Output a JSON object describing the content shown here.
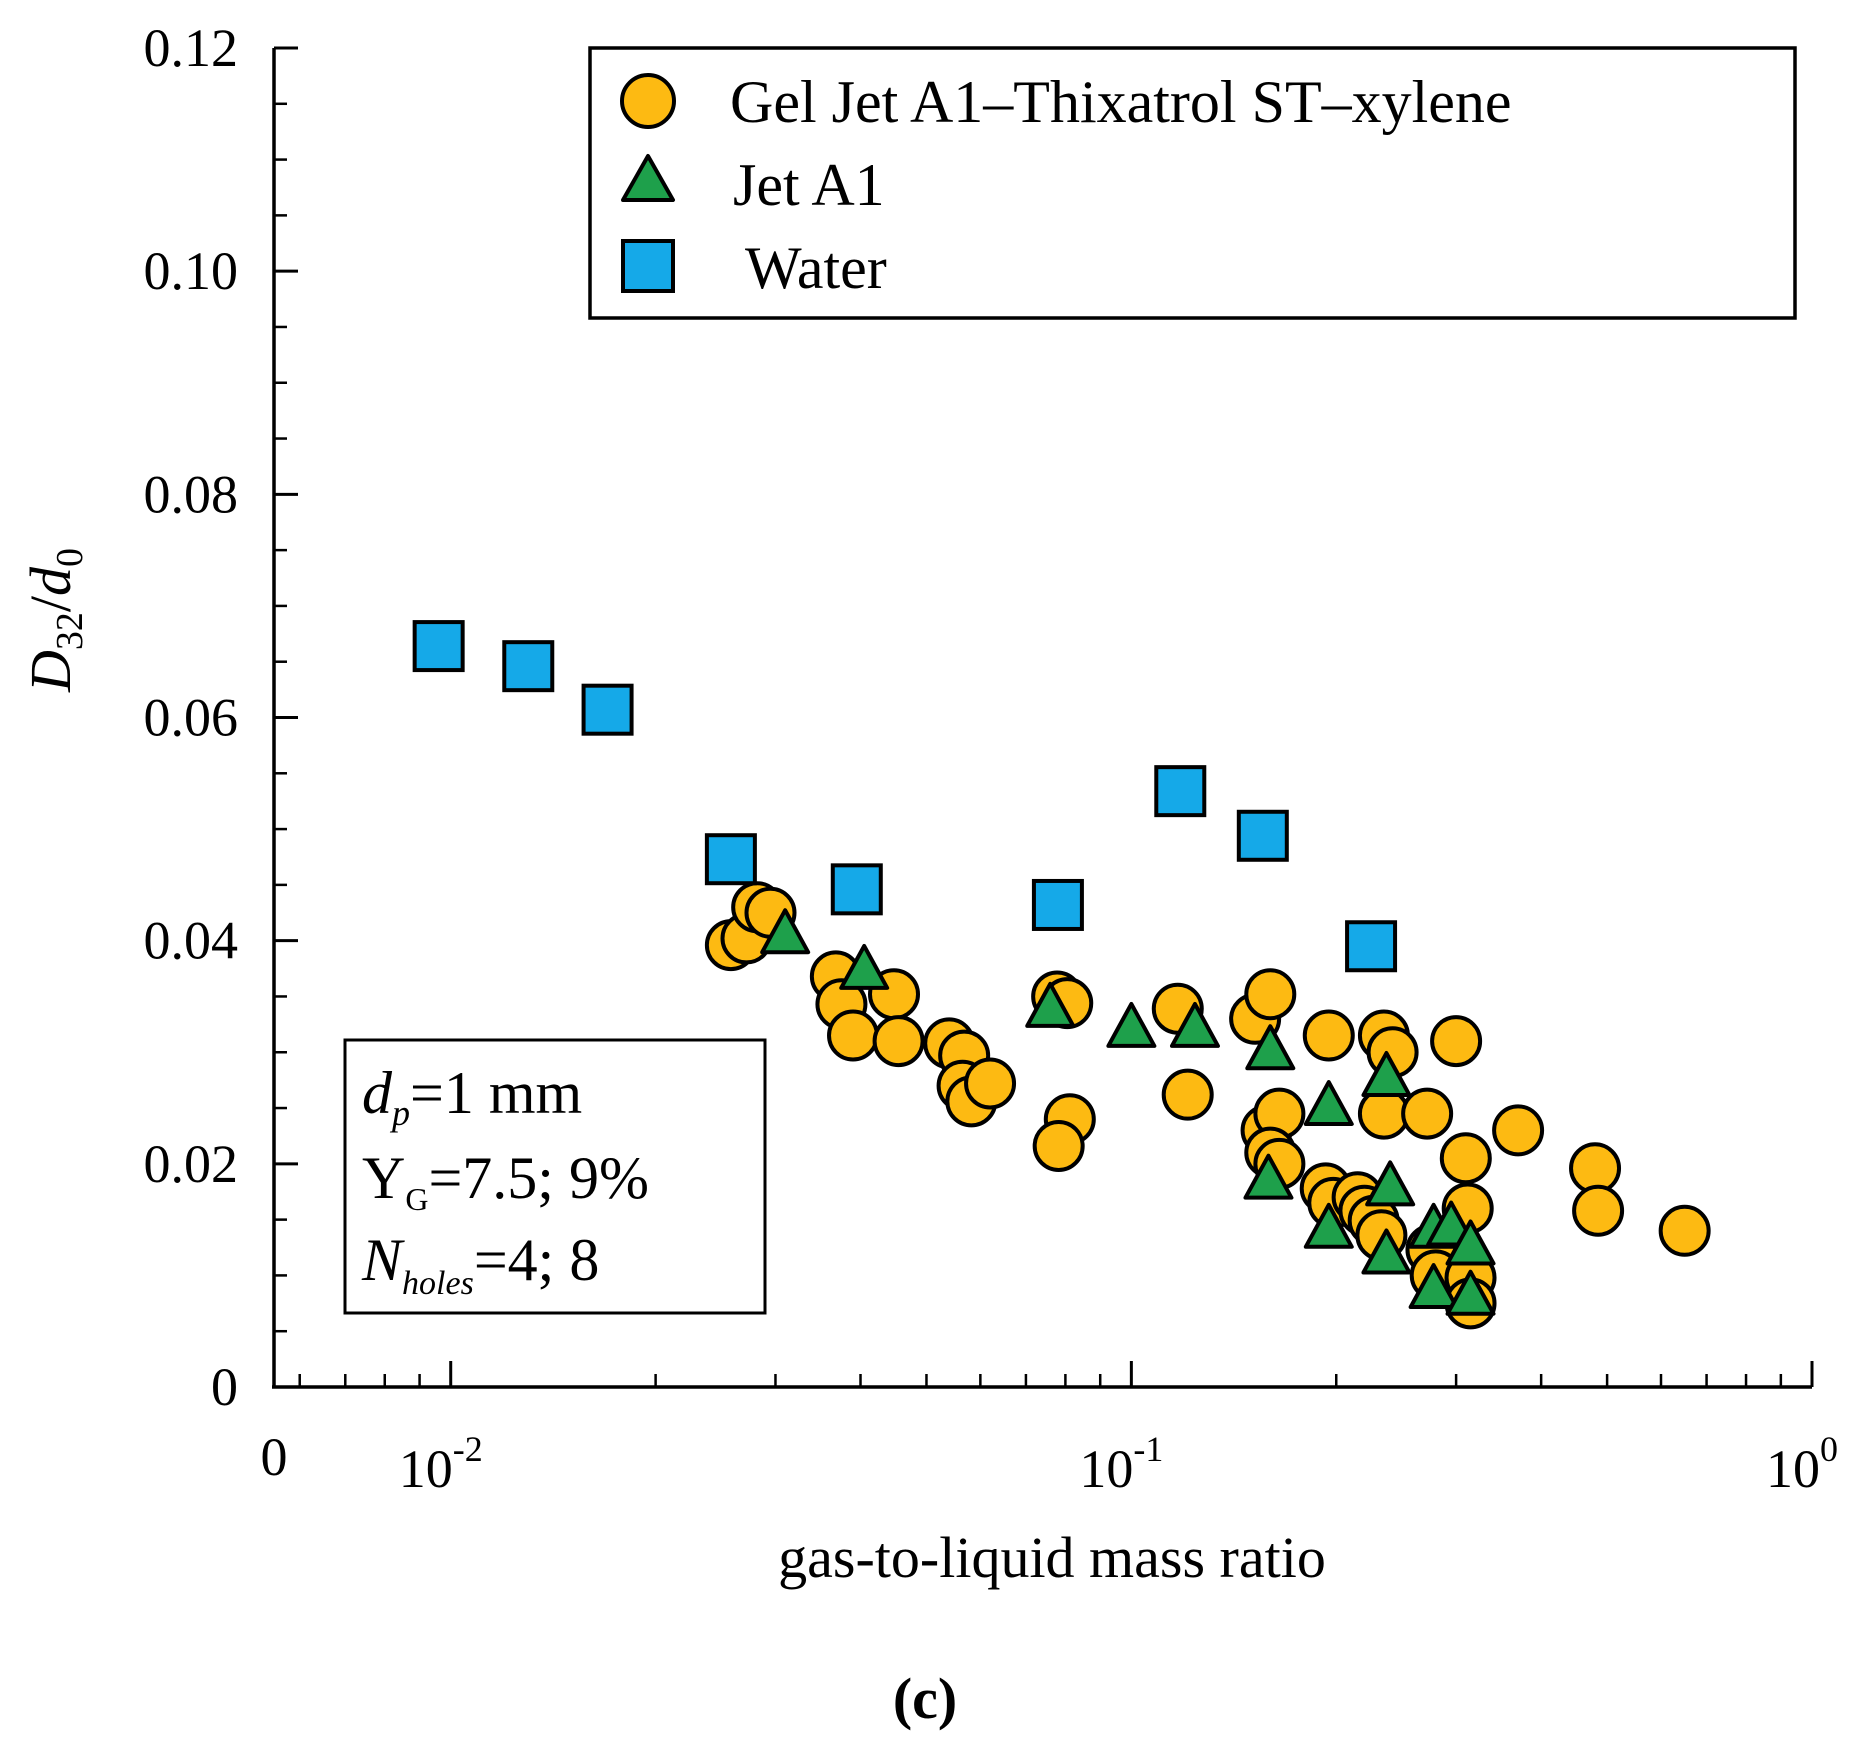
{
  "chart_data": {
    "type": "scatter",
    "x_scale": "log",
    "xlabel": "gas-to-liquid mass ratio",
    "ylabel": {
      "main": "D",
      "sub": "32",
      "slash": "/",
      "main2": "d",
      "sub2": "0"
    },
    "xlim": [
      0.0055,
      1.0
    ],
    "ylim": [
      0.0,
      0.12
    ],
    "x_ticks": [
      {
        "value": 0.0055,
        "label": "0"
      },
      {
        "value": 0.01,
        "base": "10",
        "exp": "-2"
      },
      {
        "value": 0.1,
        "base": "10",
        "exp": "-1"
      },
      {
        "value": 1.0,
        "base": "10",
        "exp": "0"
      }
    ],
    "y_ticks": [
      {
        "value": 0.12,
        "label": "0.12"
      },
      {
        "value": 0.1,
        "label": "0.10"
      },
      {
        "value": 0.08,
        "label": "0.08"
      },
      {
        "value": 0.06,
        "label": "0.06"
      },
      {
        "value": 0.04,
        "label": "0.04"
      },
      {
        "value": 0.02,
        "label": "0.02"
      },
      {
        "value": 0.0,
        "label": "0"
      }
    ],
    "legend_position": "top-right",
    "series": [
      {
        "name": "Gel Jet A1–Thixatrol ST–xylene",
        "marker": "circle",
        "color": "#FDBA12",
        "points": [
          [
            0.0258,
            0.0396
          ],
          [
            0.0272,
            0.0402
          ],
          [
            0.0282,
            0.043
          ],
          [
            0.0295,
            0.0425
          ],
          [
            0.0368,
            0.0368
          ],
          [
            0.0375,
            0.0343
          ],
          [
            0.039,
            0.0315
          ],
          [
            0.0448,
            0.0352
          ],
          [
            0.0455,
            0.031
          ],
          [
            0.054,
            0.0308
          ],
          [
            0.0568,
            0.0297
          ],
          [
            0.0565,
            0.027
          ],
          [
            0.0582,
            0.0256
          ],
          [
            0.062,
            0.0272
          ],
          [
            0.0778,
            0.035
          ],
          [
            0.0805,
            0.0344
          ],
          [
            0.0812,
            0.024
          ],
          [
            0.0782,
            0.0216
          ],
          [
            0.117,
            0.0339
          ],
          [
            0.121,
            0.0262
          ],
          [
            0.152,
            0.033
          ],
          [
            0.16,
            0.0352
          ],
          [
            0.158,
            0.023
          ],
          [
            0.165,
            0.0245
          ],
          [
            0.16,
            0.021
          ],
          [
            0.165,
            0.02
          ],
          [
            0.195,
            0.0315
          ],
          [
            0.193,
            0.0178
          ],
          [
            0.198,
            0.0165
          ],
          [
            0.215,
            0.017
          ],
          [
            0.22,
            0.0158
          ],
          [
            0.227,
            0.0149
          ],
          [
            0.233,
            0.0136
          ],
          [
            0.235,
            0.0315
          ],
          [
            0.242,
            0.03
          ],
          [
            0.235,
            0.0245
          ],
          [
            0.272,
            0.0245
          ],
          [
            0.276,
            0.0123
          ],
          [
            0.28,
            0.01
          ],
          [
            0.3,
            0.031
          ],
          [
            0.31,
            0.0205
          ],
          [
            0.312,
            0.016
          ],
          [
            0.315,
            0.0098
          ],
          [
            0.315,
            0.0075
          ],
          [
            0.37,
            0.023
          ],
          [
            0.48,
            0.0196
          ],
          [
            0.485,
            0.0158
          ],
          [
            0.65,
            0.014
          ]
        ]
      },
      {
        "name": "Jet A1",
        "marker": "triangle",
        "color": "#1EA04B",
        "points": [
          [
            0.031,
            0.0404
          ],
          [
            0.0405,
            0.0372
          ],
          [
            0.076,
            0.0338
          ],
          [
            0.1,
            0.032
          ],
          [
            0.124,
            0.032
          ],
          [
            0.16,
            0.03
          ],
          [
            0.195,
            0.025
          ],
          [
            0.237,
            0.0276
          ],
          [
            0.159,
            0.0184
          ],
          [
            0.24,
            0.0178
          ],
          [
            0.195,
            0.014
          ],
          [
            0.237,
            0.0117
          ],
          [
            0.278,
            0.014
          ],
          [
            0.295,
            0.0142
          ],
          [
            0.315,
            0.0125
          ],
          [
            0.278,
            0.0086
          ],
          [
            0.315,
            0.008
          ]
        ]
      },
      {
        "name": "Water",
        "marker": "square",
        "color": "#15A9E8",
        "points": [
          [
            0.0096,
            0.0664
          ],
          [
            0.013,
            0.0646
          ],
          [
            0.017,
            0.0607
          ],
          [
            0.0258,
            0.0473
          ],
          [
            0.0395,
            0.0446
          ],
          [
            0.078,
            0.0432
          ],
          [
            0.118,
            0.0534
          ],
          [
            0.156,
            0.0494
          ],
          [
            0.225,
            0.0395
          ]
        ]
      }
    ],
    "annotation": {
      "line1": {
        "main": "d",
        "sub": "p",
        "rest": "=1 mm"
      },
      "line2": {
        "main": "Y",
        "sub": "G",
        "rest": "=7.5; 9%"
      },
      "line3": {
        "main": "N",
        "sub": "holes",
        "rest": "=4; 8"
      }
    },
    "caption": "(c)"
  }
}
